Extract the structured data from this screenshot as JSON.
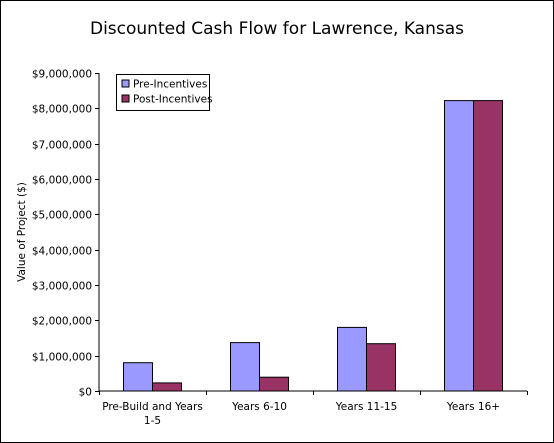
{
  "chart_data": {
    "type": "bar",
    "title": "Discounted Cash Flow for Lawrence, Kansas",
    "xlabel": "",
    "ylabel": "Value of Project ($)",
    "ylim": [
      0,
      9000000
    ],
    "yticks": [
      0,
      1000000,
      2000000,
      3000000,
      4000000,
      5000000,
      6000000,
      7000000,
      8000000,
      9000000
    ],
    "ytick_labels": [
      "$0",
      "$1,000,000",
      "$2,000,000",
      "$3,000,000",
      "$4,000,000",
      "$5,000,000",
      "$6,000,000",
      "$7,000,000",
      "$8,000,000",
      "$9,000,000"
    ],
    "categories": [
      [
        "Pre-Build and Years",
        "1-5"
      ],
      [
        "Years 6-10"
      ],
      [
        "Years 11-15"
      ],
      [
        "Years 16+"
      ]
    ],
    "series": [
      {
        "name": "Pre-Incentives",
        "color": "#9999ff",
        "values": [
          800000,
          1370000,
          1800000,
          8220000
        ]
      },
      {
        "name": "Post-Incentives",
        "color": "#993366",
        "values": [
          230000,
          390000,
          1340000,
          8220000
        ]
      }
    ],
    "grid": false,
    "legend": "top-left"
  }
}
